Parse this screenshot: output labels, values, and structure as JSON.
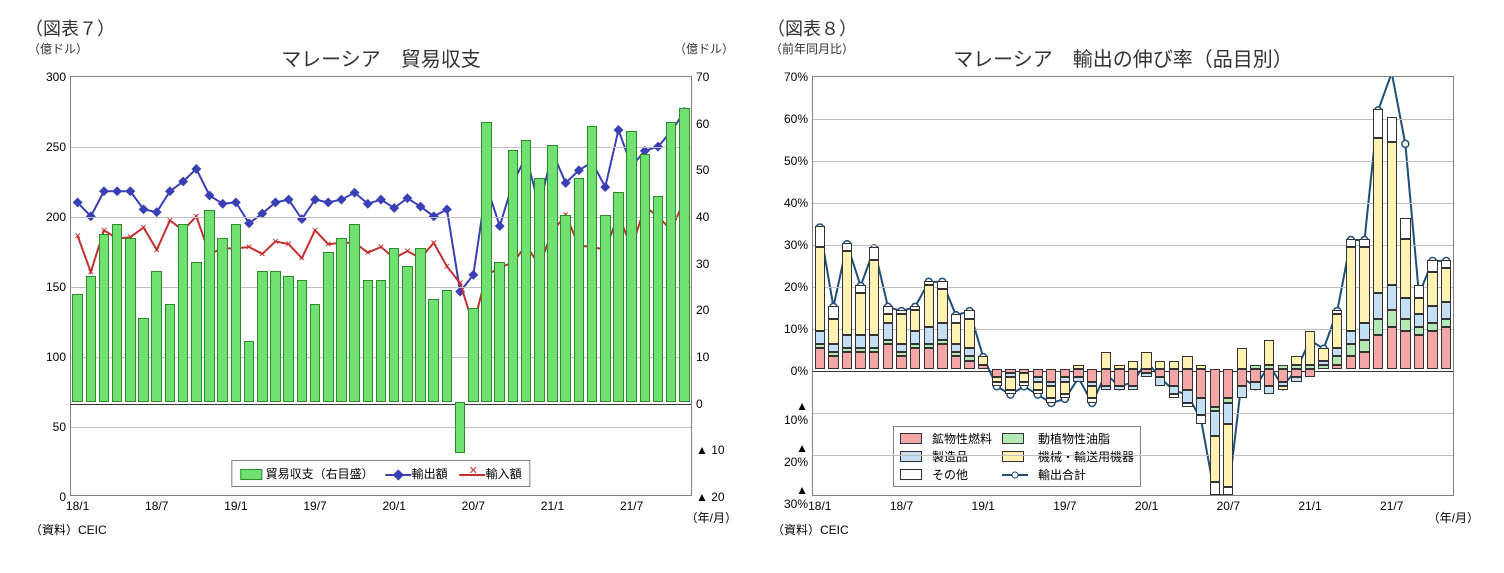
{
  "left": {
    "fig_label": "（図表７）",
    "title": "マレーシア　貿易収支",
    "y_left_label": "（億ドル）",
    "y_right_label": "（億ドル）",
    "x_axis_label": "（年/月）",
    "source": "（資料）CEIC",
    "y_left": {
      "min": 0,
      "max": 300,
      "step": 50
    },
    "y_right": {
      "min": -20,
      "max": 70,
      "step": 10,
      "ticks": [
        {
          "v": 70,
          "l": "70"
        },
        {
          "v": 60,
          "l": "60"
        },
        {
          "v": 50,
          "l": "50"
        },
        {
          "v": 40,
          "l": "40"
        },
        {
          "v": 30,
          "l": "30"
        },
        {
          "v": 20,
          "l": "20"
        },
        {
          "v": 10,
          "l": "10"
        },
        {
          "v": 0,
          "l": "0"
        },
        {
          "v": -10,
          "l": "▲ 10"
        },
        {
          "v": -20,
          "l": "▲ 20"
        }
      ]
    },
    "x_labels": [
      "18/1",
      "18/7",
      "19/1",
      "19/7",
      "20/1",
      "20/7",
      "21/1",
      "21/7"
    ],
    "colors": {
      "bar_fill": "#70e070",
      "bar_border": "#2e8b2e",
      "exports": "#3b3fb5",
      "imports": "#c33030",
      "grid": "#bfbfbf"
    },
    "legend": {
      "bar": "貿易収支（右目盛）",
      "exports": "輸出額",
      "imports": "輸入額"
    },
    "balance": [
      23,
      27,
      36,
      38,
      35,
      18,
      28,
      21,
      38,
      30,
      41,
      35,
      38,
      13,
      28,
      28,
      27,
      26,
      21,
      32,
      35,
      38,
      26,
      26,
      33,
      29,
      33,
      22,
      24,
      -11,
      20,
      60,
      30,
      54,
      56,
      48,
      55,
      40,
      48,
      59,
      40,
      45,
      58,
      53,
      44,
      60,
      63
    ],
    "exports": [
      210,
      200,
      218,
      218,
      218,
      205,
      203,
      218,
      225,
      234,
      215,
      209,
      210,
      195,
      202,
      210,
      212,
      198,
      212,
      210,
      212,
      217,
      209,
      212,
      206,
      213,
      207,
      200,
      205,
      146,
      158,
      222,
      193,
      224,
      243,
      207,
      246,
      224,
      233,
      239,
      221,
      262,
      236,
      247,
      250,
      261,
      275
    ],
    "imports": [
      186,
      160,
      190,
      184,
      185,
      192,
      176,
      197,
      190,
      200,
      173,
      177,
      177,
      178,
      173,
      182,
      180,
      170,
      190,
      180,
      181,
      181,
      174,
      178,
      170,
      175,
      170,
      181,
      164,
      152,
      122,
      158,
      163,
      167,
      179,
      165,
      189,
      201,
      179,
      178,
      176,
      201,
      177,
      207,
      200,
      190,
      212
    ]
  },
  "right": {
    "fig_label": "（図表８）",
    "title": "マレーシア　輸出の伸び率（品目別）",
    "y_left_label": "（前年同月比）",
    "x_axis_label": "（年/月）",
    "source": "（資料）CEIC",
    "y": {
      "min": -30,
      "max": 70,
      "step": 10,
      "ticks": [
        {
          "v": 70,
          "l": "70%"
        },
        {
          "v": 60,
          "l": "60%"
        },
        {
          "v": 50,
          "l": "50%"
        },
        {
          "v": 40,
          "l": "40%"
        },
        {
          "v": 30,
          "l": "30%"
        },
        {
          "v": 20,
          "l": "20%"
        },
        {
          "v": 10,
          "l": "10%"
        },
        {
          "v": 0,
          "l": "0%"
        },
        {
          "v": -10,
          "l": "▲ 10%"
        },
        {
          "v": -20,
          "l": "▲ 20%"
        },
        {
          "v": -30,
          "l": "▲ 30%"
        }
      ]
    },
    "x_labels": [
      "18/1",
      "18/7",
      "19/1",
      "19/7",
      "20/1",
      "20/7",
      "21/1",
      "21/7"
    ],
    "colors": {
      "mineral": "#f4a7a7",
      "oils": "#b6e8b6",
      "manuf": "#c5dff5",
      "machinery": "#fff2b3",
      "other": "#ffffff",
      "total_line": "#1f4e79",
      "border": "#333333"
    },
    "legend": {
      "mineral": "鉱物性燃料",
      "oils": "動植物性油脂",
      "manuf": "製造品",
      "machinery": "機械・輸送用機器",
      "other": "その他",
      "total": "輸出合計"
    },
    "series": {
      "mineral": [
        5,
        3,
        4,
        4,
        4,
        6,
        3,
        5,
        5,
        6,
        3,
        2,
        1,
        -2,
        -1,
        -1,
        -2,
        -3,
        -2,
        -2,
        -3,
        -4,
        -4,
        -4,
        -1,
        -2,
        -4,
        -5,
        -7,
        -9,
        -7,
        -4,
        -3,
        -4,
        -3,
        -2,
        -2,
        0,
        1,
        3,
        4,
        8,
        10,
        9,
        8,
        9,
        10
      ],
      "oils": [
        1,
        1,
        1,
        1,
        1,
        1,
        1,
        1,
        1,
        1,
        1,
        1,
        0,
        0,
        0,
        0,
        0,
        0,
        0,
        0,
        0,
        0,
        0,
        0,
        0,
        0,
        0,
        0,
        0,
        -1,
        -1,
        0,
        1,
        1,
        1,
        1,
        1,
        1,
        2,
        3,
        3,
        4,
        4,
        3,
        2,
        2,
        2
      ],
      "manuf": [
        3,
        2,
        3,
        3,
        3,
        4,
        2,
        3,
        4,
        4,
        2,
        2,
        0,
        0,
        -1,
        0,
        -1,
        -1,
        -1,
        -1,
        -1,
        -1,
        -1,
        -1,
        -1,
        -2,
        -2,
        -3,
        -4,
        -6,
        -5,
        -3,
        -2,
        -2,
        -1,
        -1,
        0,
        1,
        2,
        3,
        4,
        6,
        6,
        5,
        3,
        4,
        4
      ],
      "machinery": [
        20,
        6,
        20,
        10,
        18,
        2,
        7,
        5,
        10,
        8,
        5,
        7,
        2,
        -1,
        -3,
        -2,
        -2,
        -3,
        -3,
        1,
        -3,
        4,
        1,
        2,
        4,
        2,
        2,
        3,
        1,
        -11,
        -15,
        5,
        0,
        6,
        -1,
        2,
        8,
        3,
        8,
        20,
        18,
        37,
        34,
        14,
        4,
        8,
        8
      ],
      "other": [
        5,
        3,
        2,
        2,
        3,
        2,
        1,
        1,
        1,
        2,
        2,
        2,
        0,
        -1,
        -1,
        -1,
        -1,
        -1,
        -1,
        0,
        -1,
        0,
        0,
        0,
        0,
        0,
        -1,
        -1,
        -2,
        -3,
        -2,
        0,
        0,
        0,
        0,
        0,
        0,
        0,
        1,
        2,
        2,
        7,
        6,
        5,
        3,
        3,
        2
      ],
      "total": [
        34,
        15,
        30,
        20,
        29,
        15,
        14,
        15,
        21,
        21,
        13,
        14,
        3,
        -4,
        -6,
        -4,
        -6,
        -8,
        -7,
        -2,
        -8,
        -1,
        -4,
        -3,
        2,
        -2,
        -5,
        -6,
        -12,
        -30,
        -30,
        -2,
        -4,
        1,
        -4,
        0,
        7,
        5,
        14,
        31,
        31,
        62,
        71,
        54,
        18,
        26,
        26
      ]
    }
  }
}
